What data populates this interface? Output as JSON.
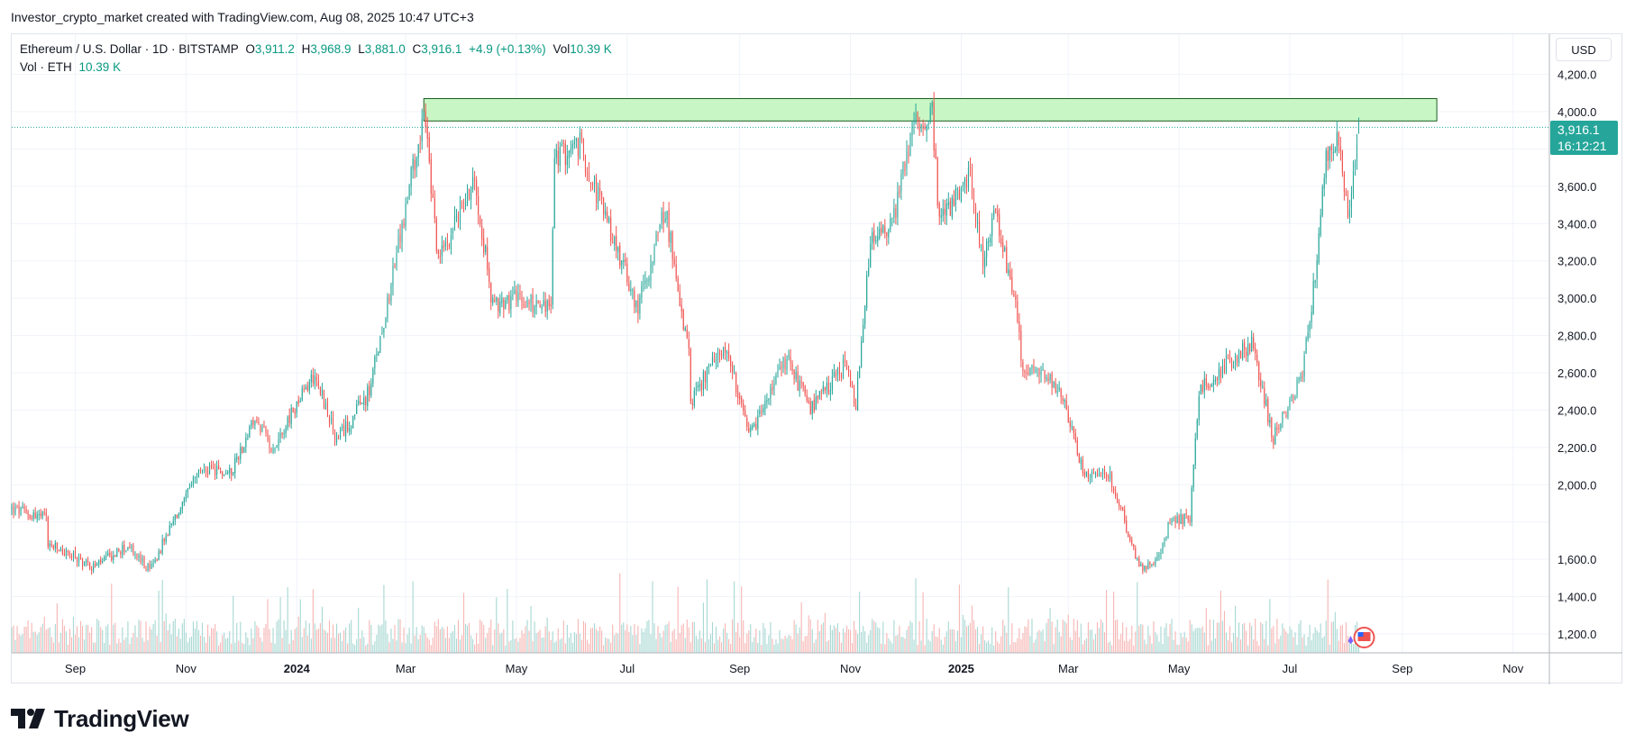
{
  "header": {
    "publisher_line": "Investor_crypto_market created with TradingView.com, Aug 08, 2025 10:47 UTC+3"
  },
  "legend": {
    "symbol": "Ethereum / U.S. Dollar · 1D · BITSTAMP",
    "o_label": "O",
    "o_value": "3,911.2",
    "h_label": "H",
    "h_value": "3,968.9",
    "l_label": "L",
    "l_value": "3,881.0",
    "c_label": "C",
    "c_value": "3,916.1",
    "change": "+4.9 (+0.13%)",
    "vol_label": "Vol",
    "vol_value": "10.39 K",
    "vol_row_label": "Vol · ETH",
    "vol_row_value": "10.39 K"
  },
  "price_axis": {
    "currency": "USD",
    "current_price": "3,916.1",
    "countdown": "16:12:21"
  },
  "brand": {
    "name": "TradingView"
  },
  "colors": {
    "up": "#26a69a",
    "down": "#ef5350",
    "vol_up": "#a7d8d3",
    "vol_down": "#f6b6b4",
    "zone_fill": "#c8f7c5",
    "zone_stroke": "#1b5e20",
    "grid": "#f0f3fa"
  },
  "chart_data": {
    "type": "candlestick",
    "interval": "1D",
    "y_axis": {
      "range": [
        1100,
        4400
      ],
      "ticks": [
        1200,
        1400,
        1600,
        1800,
        2000,
        2200,
        2400,
        2600,
        2800,
        3000,
        3200,
        3400,
        3600,
        3800,
        4000,
        4200
      ],
      "tick_labels": [
        "1,200.0",
        "1,400.0",
        "1,600.0",
        "",
        "2,000.0",
        "2,200.0",
        "2,400.0",
        "2,600.0",
        "2,800.0",
        "3,000.0",
        "3,200.0",
        "3,400.0",
        "3,600.0",
        "",
        "4,000.0",
        "4,200.0"
      ]
    },
    "x_axis": {
      "start": "2023-07-28",
      "end": "2025-11-21",
      "ticks": [
        {
          "date": "2023-09-01",
          "label": "Sep",
          "bold": false
        },
        {
          "date": "2023-11-01",
          "label": "Nov",
          "bold": false
        },
        {
          "date": "2024-01-01",
          "label": "2024",
          "bold": true
        },
        {
          "date": "2024-03-01",
          "label": "Mar",
          "bold": false
        },
        {
          "date": "2024-05-01",
          "label": "May",
          "bold": false
        },
        {
          "date": "2024-07-01",
          "label": "Jul",
          "bold": false
        },
        {
          "date": "2024-09-01",
          "label": "Sep",
          "bold": false
        },
        {
          "date": "2024-11-01",
          "label": "Nov",
          "bold": false
        },
        {
          "date": "2025-01-01",
          "label": "2025",
          "bold": true
        },
        {
          "date": "2025-03-01",
          "label": "Mar",
          "bold": false
        },
        {
          "date": "2025-05-01",
          "label": "May",
          "bold": false
        },
        {
          "date": "2025-07-01",
          "label": "Jul",
          "bold": false
        },
        {
          "date": "2025-09-01",
          "label": "Sep",
          "bold": false
        },
        {
          "date": "2025-11-01",
          "label": "Nov",
          "bold": false
        }
      ]
    },
    "last_close": 3916.1,
    "current_price_line": 3916.1,
    "resistance_zone": {
      "from": "2024-03-11",
      "to": "2025-09-20",
      "low": 3950,
      "high": 4070
    },
    "price_path": [
      {
        "date": "2023-07-28",
        "price": 1870
      },
      {
        "date": "2023-08-16",
        "price": 1820
      },
      {
        "date": "2023-08-17",
        "price": 1680
      },
      {
        "date": "2023-09-11",
        "price": 1560
      },
      {
        "date": "2023-09-30",
        "price": 1670
      },
      {
        "date": "2023-10-12",
        "price": 1540
      },
      {
        "date": "2023-10-24",
        "price": 1780
      },
      {
        "date": "2023-11-09",
        "price": 2080
      },
      {
        "date": "2023-11-25",
        "price": 2060
      },
      {
        "date": "2023-12-09",
        "price": 2350
      },
      {
        "date": "2023-12-19",
        "price": 2200
      },
      {
        "date": "2024-01-11",
        "price": 2600
      },
      {
        "date": "2024-01-23",
        "price": 2230
      },
      {
        "date": "2024-02-10",
        "price": 2500
      },
      {
        "date": "2024-02-28",
        "price": 3380
      },
      {
        "date": "2024-03-11",
        "price": 4000
      },
      {
        "date": "2024-03-19",
        "price": 3200
      },
      {
        "date": "2024-04-08",
        "price": 3650
      },
      {
        "date": "2024-04-18",
        "price": 2950
      },
      {
        "date": "2024-05-01",
        "price": 3000
      },
      {
        "date": "2024-05-20",
        "price": 2950
      },
      {
        "date": "2024-05-22",
        "price": 3750
      },
      {
        "date": "2024-06-05",
        "price": 3820
      },
      {
        "date": "2024-06-24",
        "price": 3300
      },
      {
        "date": "2024-07-07",
        "price": 2950
      },
      {
        "date": "2024-07-22",
        "price": 3480
      },
      {
        "date": "2024-08-04",
        "price": 2700
      },
      {
        "date": "2024-08-05",
        "price": 2450
      },
      {
        "date": "2024-08-24",
        "price": 2750
      },
      {
        "date": "2024-09-06",
        "price": 2250
      },
      {
        "date": "2024-09-27",
        "price": 2680
      },
      {
        "date": "2024-10-10",
        "price": 2400
      },
      {
        "date": "2024-10-29",
        "price": 2640
      },
      {
        "date": "2024-11-04",
        "price": 2420
      },
      {
        "date": "2024-11-12",
        "price": 3300
      },
      {
        "date": "2024-11-24",
        "price": 3400
      },
      {
        "date": "2024-12-06",
        "price": 3950
      },
      {
        "date": "2024-12-16",
        "price": 3980
      },
      {
        "date": "2024-12-20",
        "price": 3400
      },
      {
        "date": "2025-01-06",
        "price": 3650
      },
      {
        "date": "2025-01-13",
        "price": 3200
      },
      {
        "date": "2025-01-20",
        "price": 3450
      },
      {
        "date": "2025-02-02",
        "price": 2850
      },
      {
        "date": "2025-02-03",
        "price": 2650
      },
      {
        "date": "2025-02-24",
        "price": 2520
      },
      {
        "date": "2025-03-10",
        "price": 2050
      },
      {
        "date": "2025-03-24",
        "price": 2050
      },
      {
        "date": "2025-04-09",
        "price": 1550
      },
      {
        "date": "2025-04-20",
        "price": 1620
      },
      {
        "date": "2025-04-26",
        "price": 1800
      },
      {
        "date": "2025-05-07",
        "price": 1830
      },
      {
        "date": "2025-05-12",
        "price": 2500
      },
      {
        "date": "2025-05-27",
        "price": 2650
      },
      {
        "date": "2025-06-10",
        "price": 2750
      },
      {
        "date": "2025-06-22",
        "price": 2250
      },
      {
        "date": "2025-07-08",
        "price": 2600
      },
      {
        "date": "2025-07-14",
        "price": 3050
      },
      {
        "date": "2025-07-21",
        "price": 3750
      },
      {
        "date": "2025-07-28",
        "price": 3850
      },
      {
        "date": "2025-08-02",
        "price": 3400
      },
      {
        "date": "2025-08-08",
        "price": 3916.1
      }
    ]
  }
}
